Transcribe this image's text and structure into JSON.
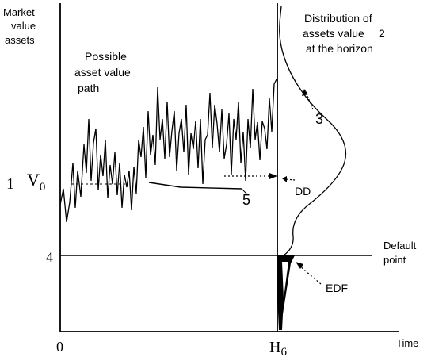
{
  "labels": {
    "y_axis_line1": "Market",
    "y_axis_line2": "value",
    "y_axis_line3": "assets",
    "path_line1": "Possible",
    "path_line2": "asset value",
    "path_line3": "path",
    "dist_line1": "Distribution of",
    "dist_line2": "assets value",
    "dist_line3": "at the horizon",
    "default_line1": "Default",
    "default_line2": "point",
    "dd": "DD",
    "edf": "EDF",
    "origin": "0",
    "v0_base": "V",
    "v0_sub": "0",
    "horizon_base": "H",
    "horizon_sub": "6",
    "x_axis": "Time"
  },
  "markers": {
    "m1": "1",
    "m2": "2",
    "m3": "3",
    "m4": "4",
    "m5": "5"
  },
  "colors": {
    "stroke": "#000000",
    "background": "#ffffff"
  }
}
